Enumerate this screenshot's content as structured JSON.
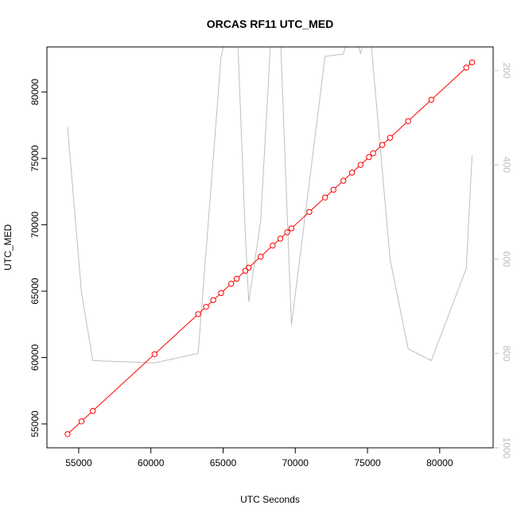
{
  "chart_data": {
    "type": "line",
    "title": "ORCAS RF11 UTC_MED",
    "xlabel": "UTC Seconds",
    "ylabel": "UTC_MED",
    "xlim": [
      52800,
      83700
    ],
    "ylim": [
      53200,
      83400
    ],
    "x_ticks": [
      55000,
      60000,
      65000,
      70000,
      75000,
      80000
    ],
    "y_ticks": [
      55000,
      60000,
      65000,
      70000,
      75000,
      80000
    ],
    "y2_lim": [
      1000,
      150
    ],
    "y2_reversed": true,
    "y2_ticks": [
      200,
      400,
      600,
      800,
      1000
    ],
    "series": [
      {
        "color": "#ff0000",
        "marker": "open-circle",
        "x": [
          54230,
          55190,
          55980,
          60250,
          63270,
          63820,
          64320,
          64860,
          65560,
          65940,
          66540,
          66780,
          67600,
          68440,
          68960,
          69440,
          69730,
          70970,
          72060,
          72640,
          73330,
          73930,
          74520,
          75100,
          75390,
          76020,
          76560,
          77810,
          79420,
          81840,
          82240
        ],
        "y": [
          54230,
          55190,
          55980,
          60250,
          63270,
          63820,
          64320,
          64860,
          65560,
          65940,
          66540,
          66780,
          67600,
          68440,
          68960,
          69440,
          69730,
          70970,
          72060,
          72640,
          73330,
          73930,
          74520,
          75100,
          75390,
          76020,
          76560,
          77810,
          79420,
          81840,
          82240
        ]
      },
      {
        "color": "#bebebe",
        "axis": "right",
        "x": [
          54230,
          55190,
          55980,
          60250,
          63270,
          64860,
          65560,
          65940,
          66540,
          66780,
          67600,
          68440,
          68960,
          69730,
          72060,
          73330,
          73930,
          74520,
          75100,
          76560,
          77810,
          79420,
          81840,
          82240
        ],
        "y": [
          320,
          670,
          815,
          820,
          800,
          170,
          80,
          80,
          550,
          690,
          520,
          60,
          120,
          740,
          170,
          165,
          100,
          165,
          90,
          600,
          790,
          815,
          620,
          380
        ]
      }
    ]
  }
}
